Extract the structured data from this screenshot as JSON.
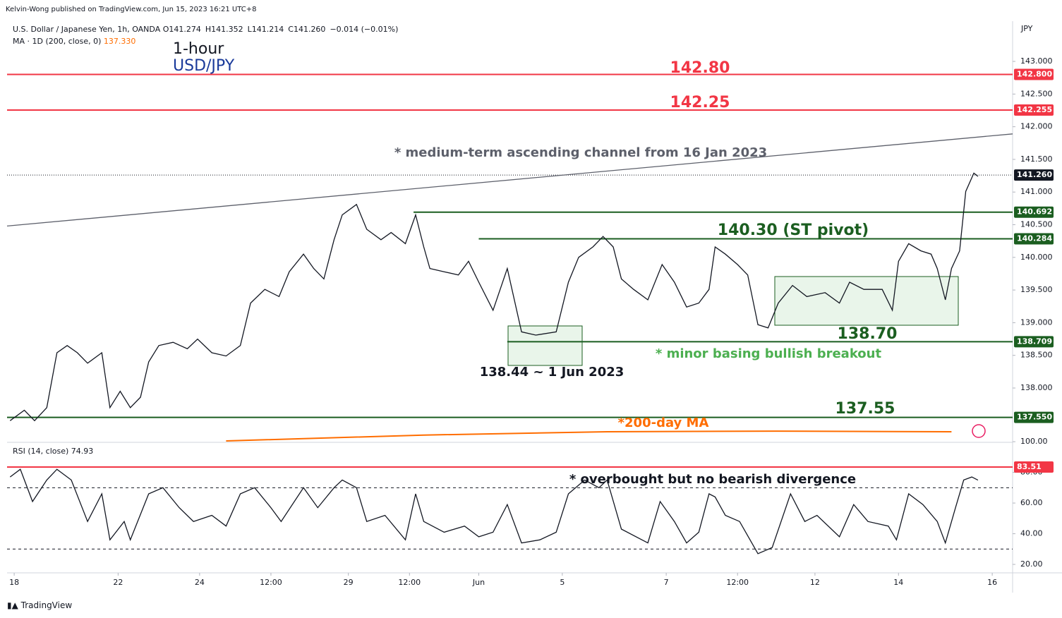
{
  "header": {
    "publisher": "Kelvin-Wong published on TradingView.com, Jun 15, 2023 16:21 UTC+8",
    "symbol": "U.S. Dollar / Japanese Yen, 1h, OANDA",
    "ohlc": [
      "O141.274",
      "H141.352",
      "L141.214",
      "C141.260",
      "−0.014 (−0.01%)"
    ],
    "ma_label": "MA · 1D (200, close, 0)",
    "ma_value": "137.330",
    "timeframe": "1-hour",
    "pair": "USD/JPY",
    "currency": "JPY",
    "rsi_label": "RSI (14, close)",
    "rsi_value": "74.93",
    "footer": "TradingView"
  },
  "chart_data": [
    {
      "type": "line",
      "xlim": [
        -3.5,
        490
      ],
      "ylim": [
        137.19,
        143.616
      ],
      "xticks": [
        {
          "value": 0,
          "label": "18"
        },
        {
          "value": 51,
          "label": "22"
        },
        {
          "value": 91,
          "label": "24"
        },
        {
          "value": 126,
          "label": "12:00"
        },
        {
          "value": 164,
          "label": "29"
        },
        {
          "value": 194,
          "label": "12:00"
        },
        {
          "value": 228,
          "label": "Jun"
        },
        {
          "value": 269,
          "label": "5"
        },
        {
          "value": 320,
          "label": "7"
        },
        {
          "value": 355,
          "label": "12:00"
        },
        {
          "value": 393,
          "label": "12"
        },
        {
          "value": 434,
          "label": "14"
        },
        {
          "value": 480,
          "label": "16"
        }
      ],
      "yticks": [
        {
          "value": 138,
          "label": "138.000"
        },
        {
          "value": 138.5,
          "label": "138.500"
        },
        {
          "value": 139,
          "label": "139.000"
        },
        {
          "value": 139.5,
          "label": "139.500"
        },
        {
          "value": 140,
          "label": "140.000"
        },
        {
          "value": 140.5,
          "label": "140.500"
        },
        {
          "value": 141,
          "label": "141.000"
        },
        {
          "value": 141.5,
          "label": "141.500"
        },
        {
          "value": 142,
          "label": "142.000"
        },
        {
          "value": 142.5,
          "label": "142.500"
        },
        {
          "value": 143,
          "label": "143.000"
        }
      ],
      "series": [
        {
          "color": "#131722",
          "x": [
            -2,
            5,
            10,
            16,
            21,
            26,
            31,
            36,
            43,
            47,
            52,
            57,
            62,
            66,
            71,
            78,
            85,
            90,
            97,
            104,
            111,
            116,
            123,
            130,
            135,
            142,
            147,
            152,
            157,
            161,
            168,
            173,
            180,
            185,
            192,
            197,
            201,
            204,
            211,
            218,
            223,
            228,
            235,
            242,
            249,
            256,
            266,
            272,
            277,
            284,
            289,
            294,
            298,
            304,
            311,
            318,
            324,
            330,
            336,
            341,
            344,
            349,
            355,
            360,
            365,
            370,
            375,
            382,
            389,
            398,
            405,
            410,
            417,
            426,
            431,
            434,
            439,
            445,
            450,
            453,
            457,
            460,
            464,
            467,
            471,
            473
          ],
          "values": [
            137.5,
            137.66,
            137.5,
            137.7,
            138.54,
            138.65,
            138.54,
            138.38,
            138.54,
            137.7,
            137.95,
            137.7,
            137.86,
            138.4,
            138.65,
            138.7,
            138.6,
            138.75,
            138.54,
            138.49,
            138.65,
            139.3,
            139.51,
            139.4,
            139.78,
            140.05,
            139.83,
            139.67,
            140.27,
            140.65,
            140.81,
            140.43,
            140.27,
            140.38,
            140.21,
            140.65,
            140.16,
            139.83,
            139.78,
            139.73,
            139.94,
            139.62,
            139.19,
            139.83,
            138.86,
            138.81,
            138.86,
            139.62,
            140.0,
            140.16,
            140.32,
            140.16,
            139.67,
            139.51,
            139.35,
            139.89,
            139.62,
            139.24,
            139.3,
            139.51,
            140.16,
            140.05,
            139.89,
            139.73,
            138.97,
            138.92,
            139.3,
            139.57,
            139.4,
            139.46,
            139.3,
            139.62,
            139.51,
            139.51,
            139.19,
            139.94,
            140.21,
            140.1,
            140.05,
            139.83,
            139.35,
            139.83,
            140.1,
            141.01,
            141.29,
            141.24
          ]
        },
        {
          "color": "#ff6d00",
          "x": [
            104,
            201,
            291,
            374,
            460
          ],
          "values": [
            137.19,
            137.28,
            137.33,
            137.34,
            137.33
          ]
        },
        {
          "color": "#5d606b",
          "x": [
            -3.5,
            490
          ],
          "values": [
            140.48,
            141.89
          ]
        }
      ],
      "levels": [
        {
          "value": 142.8,
          "label": "142.800",
          "color": "#f23645",
          "from": -3.5
        },
        {
          "value": 142.255,
          "label": "142.255",
          "color": "#f23645",
          "from": -3.5
        },
        {
          "value": 140.692,
          "label": "140.692",
          "color": "#1b5e20",
          "from": 196
        },
        {
          "value": 140.284,
          "label": "140.284",
          "color": "#1b5e20",
          "from": 228
        },
        {
          "value": 138.709,
          "label": "138.709",
          "color": "#1b5e20",
          "from": 242
        },
        {
          "value": 137.55,
          "label": "137.550",
          "color": "#1b5e20",
          "from": -3.5
        }
      ],
      "last_price": {
        "value": 141.26,
        "label": "141.260",
        "color": "#131722"
      },
      "annotations": [
        "142.80",
        "142.25",
        "* medium-term ascending channel from 16 Jan 2023",
        "140.30 (ST pivot)",
        "138.70",
        "138.44 ~ 1 Jun 2023",
        "* minor basing bullish breakout",
        "137.55",
        "*200-day MA",
        "* overbought but no bearish divergence"
      ]
    },
    {
      "type": "line",
      "xlim": [
        -3.5,
        490
      ],
      "ylim": [
        14.5,
        98.2
      ],
      "yticks": [
        {
          "value": 20,
          "label": "20.00"
        },
        {
          "value": 40,
          "label": "40.00"
        },
        {
          "value": 60,
          "label": "60.00"
        },
        {
          "value": 80,
          "label": "80.00"
        },
        {
          "value": 100,
          "label": "100.00"
        }
      ],
      "dashed_levels": [
        70,
        30
      ],
      "levels": [
        {
          "value": 83.51,
          "label": "83.51",
          "color": "#f23645",
          "from": -3.5
        }
      ],
      "series": [
        {
          "color": "#131722",
          "x": [
            -2,
            3,
            9,
            16,
            21,
            28,
            36,
            43,
            47,
            54,
            57,
            66,
            73,
            81,
            88,
            97,
            104,
            111,
            118,
            126,
            131,
            142,
            149,
            157,
            161,
            168,
            173,
            182,
            192,
            197,
            201,
            211,
            221,
            228,
            235,
            242,
            249,
            258,
            266,
            272,
            280,
            287,
            291,
            298,
            311,
            317,
            324,
            330,
            336,
            341,
            344,
            349,
            356,
            365,
            372,
            381,
            388,
            394,
            405,
            412,
            419,
            429,
            433,
            439,
            446,
            453,
            457,
            462,
            466,
            470,
            473
          ],
          "values": [
            77,
            82,
            61,
            75,
            82,
            75,
            48,
            66,
            36,
            48,
            36,
            66,
            70,
            57,
            48,
            52,
            45,
            66,
            70,
            57,
            48,
            70,
            57,
            70,
            75,
            70,
            48,
            52,
            36,
            66,
            48,
            41,
            45,
            38,
            41,
            59,
            34,
            36,
            41,
            66,
            75,
            70,
            75,
            43,
            34,
            61,
            48,
            34,
            41,
            66,
            64,
            52,
            48,
            27,
            31,
            66,
            48,
            52,
            38,
            59,
            48,
            45,
            36,
            66,
            59,
            48,
            34,
            57,
            75,
            77,
            74.93
          ]
        }
      ]
    }
  ]
}
